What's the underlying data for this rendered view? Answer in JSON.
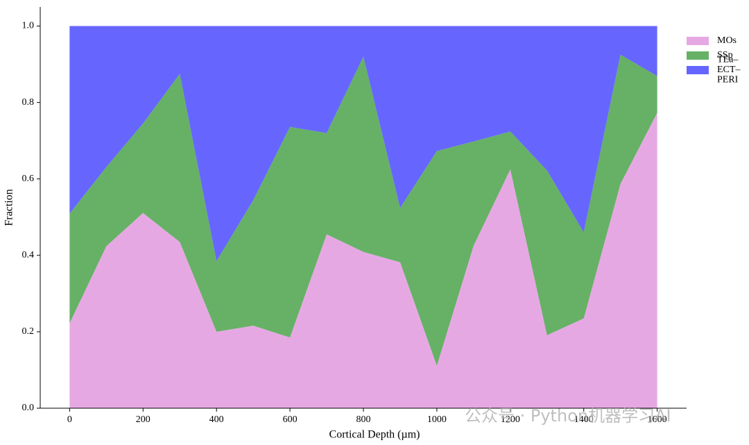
{
  "chart_data": {
    "type": "stacked_area",
    "x_label": "Cortical Depth (µm)",
    "y_label": "Fraction",
    "x": [
      0,
      100,
      200,
      300,
      400,
      500,
      600,
      700,
      800,
      900,
      1000,
      1100,
      1200,
      1300,
      1400,
      1500,
      1600
    ],
    "series": [
      {
        "name": "MOs",
        "color": "#e6a8e3",
        "values": [
          0.222,
          0.424,
          0.511,
          0.435,
          0.2,
          0.216,
          0.185,
          0.455,
          0.409,
          0.382,
          0.111,
          0.425,
          0.625,
          0.191,
          0.235,
          0.587,
          0.773
        ]
      },
      {
        "name": "SSp",
        "color": "#66b166",
        "values": [
          0.287,
          0.207,
          0.234,
          0.44,
          0.185,
          0.328,
          0.551,
          0.265,
          0.511,
          0.142,
          0.562,
          0.273,
          0.099,
          0.431,
          0.225,
          0.338,
          0.096
        ]
      },
      {
        "name": "TEa–ECT–PERI",
        "color": "#6666ff",
        "values": [
          0.491,
          0.369,
          0.255,
          0.125,
          0.615,
          0.456,
          0.264,
          0.28,
          0.08,
          0.476,
          0.327,
          0.302,
          0.276,
          0.378,
          0.54,
          0.075,
          0.131
        ]
      }
    ],
    "xlim": [
      -80,
      1680
    ],
    "ylim": [
      0,
      1.05
    ],
    "xticks": [
      0,
      200,
      400,
      600,
      800,
      1000,
      1200,
      1400,
      1600
    ],
    "yticks": [
      {
        "value": 0,
        "label": "0.0"
      },
      0.2,
      0.4,
      0.6,
      0.8,
      {
        "value": 1,
        "label": "1.0"
      }
    ],
    "legend": "upper right outside",
    "watermark": "公众号 · Python机器学习AI"
  }
}
